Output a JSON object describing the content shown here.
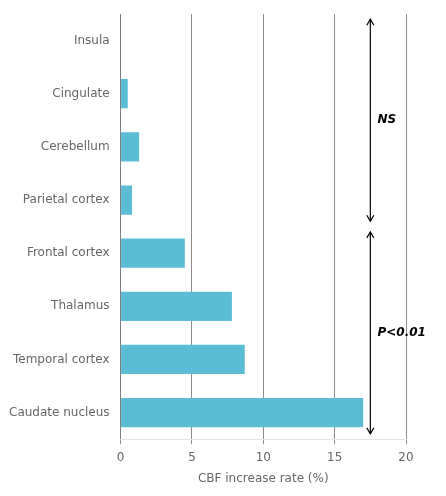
{
  "chart_data": {
    "type": "bar",
    "orientation": "horizontal",
    "categories": [
      "Insula",
      "Cingulate",
      "Cerebellum",
      "Parietal cortex",
      "Frontal cortex",
      "Thalamus",
      "Temporal cortex",
      "Caudate nucleus"
    ],
    "values": [
      0.0,
      0.5,
      1.3,
      0.8,
      4.5,
      7.8,
      8.7,
      17.0
    ],
    "color": "#5bbcd6",
    "xlabel": "CBF increase rate (%)",
    "xlim": [
      0,
      20
    ],
    "xticks": [
      0,
      5,
      10,
      15,
      20
    ],
    "grid": true,
    "annotations": [
      {
        "text": "NS",
        "x": 18.0,
        "arrow_x": 17.5,
        "from": "Insula",
        "to": "Parietal cortex"
      },
      {
        "text": "P<0.01",
        "x": 18.0,
        "arrow_x": 17.5,
        "from": "Frontal cortex",
        "to": "Caudate nucleus"
      }
    ]
  }
}
